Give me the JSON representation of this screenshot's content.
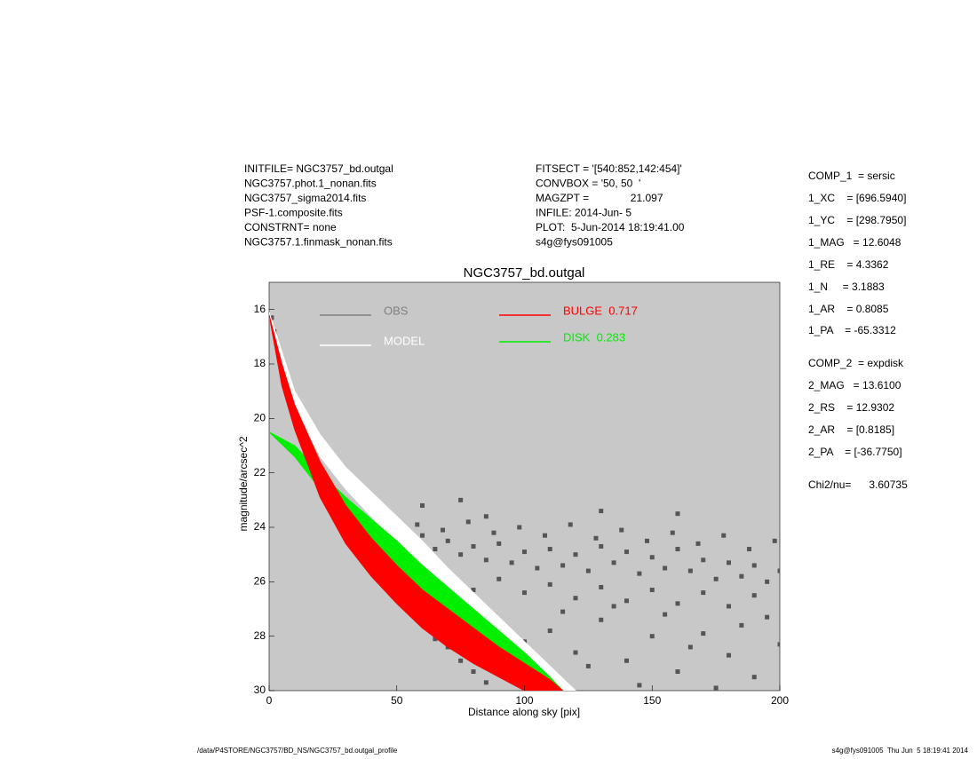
{
  "header": {
    "left": [
      "INITFILE= NGC3757_bd.outgal",
      "NGC3757.phot.1_nonan.fits",
      "NGC3757_sigma2014.fits",
      "PSF-1.composite.fits",
      "CONSTRNT= none",
      "NGC3757.1.finmask_nonan.fits"
    ],
    "middle": [
      "FITSECT = '[540:852,142:454]'",
      "CONVBOX = '50, 50  '",
      "MAGZPT =              21.097",
      "INFILE: 2014-Jun- 5",
      "PLOT:  5-Jun-2014 18:19:41.00",
      "s4g@fys091005"
    ]
  },
  "params": [
    "COMP_1  = sersic",
    "1_XC    = [696.5940]",
    "1_YC    = [298.7950]",
    "1_MAG   = 12.6048",
    "1_RE    = 4.3362",
    "1_N     = 3.1883",
    "1_AR    = 0.8085",
    "1_PA    = -65.3312",
    "COMP_2  = expdisk",
    "2_MAG   = 13.6100",
    "2_RS    = 12.9302",
    "2_AR    = [0.8185]",
    "2_PA    = [-36.7750]",
    "Chi2/nu=      3.60735"
  ],
  "footer": {
    "left": "/data/P4STORE/NGC3757/BD_NS/NGC3757_bd.outgal_profile",
    "right": "s4g@fys091005  Thu Jun  5 18:19:41 2014"
  },
  "chart_data": {
    "type": "scatter",
    "title": "NGC3757_bd.outgal",
    "xlabel": "Distance along sky [pix]",
    "ylabel": "magnitude/arcsec^2",
    "xlim": [
      0,
      200
    ],
    "ylim": [
      30,
      15
    ],
    "xticks": [
      0,
      50,
      100,
      150,
      200
    ],
    "yticks": [
      16,
      18,
      20,
      22,
      24,
      26,
      28,
      30
    ],
    "background": "#c8c8c8",
    "series": [
      {
        "name": "OBS",
        "color": "#808080",
        "point_color": "#555555",
        "style": "scatter",
        "x": [
          1,
          2,
          3,
          4,
          6,
          8,
          10,
          12,
          14,
          16,
          18,
          20,
          22,
          24,
          26,
          28,
          30,
          32,
          34,
          36,
          38,
          40,
          20,
          25,
          30,
          35,
          40,
          45,
          50,
          55,
          60,
          65,
          70,
          75,
          80,
          85,
          18,
          28,
          38,
          45,
          50,
          55,
          60,
          65,
          70,
          75,
          80,
          85,
          90,
          95,
          100,
          105,
          110,
          115,
          120,
          125,
          130,
          135,
          140,
          145,
          150,
          155,
          160,
          165,
          170,
          175,
          180,
          185,
          190,
          195,
          200,
          60,
          70,
          80,
          90,
          100,
          110,
          120,
          130,
          140,
          150,
          160,
          170,
          180,
          190,
          48,
          58,
          68,
          78,
          88,
          98,
          108,
          118,
          128,
          138,
          148,
          158,
          168,
          178,
          188,
          198,
          90,
          100,
          110,
          120,
          130,
          140,
          150,
          160,
          170,
          180,
          190,
          200,
          105,
          125,
          145,
          165,
          185,
          155,
          115,
          135,
          195,
          175,
          60,
          85,
          130,
          160,
          75
        ],
        "values": [
          16.3,
          16.8,
          17.3,
          17.8,
          18.4,
          18.9,
          19.4,
          19.8,
          20.1,
          20.5,
          20.8,
          21.1,
          21.4,
          21.6,
          21.9,
          22.1,
          22.4,
          22.6,
          22.8,
          23.0,
          23.2,
          23.4,
          22.4,
          23.3,
          24.0,
          24.6,
          25.1,
          25.6,
          26.4,
          27.0,
          27.5,
          28.1,
          28.4,
          28.9,
          29.3,
          29.7,
          21.9,
          23.5,
          24.2,
          24.2,
          24.0,
          24.6,
          24.3,
          24.8,
          24.5,
          25.0,
          24.7,
          25.2,
          24.6,
          25.3,
          24.9,
          25.5,
          24.8,
          25.4,
          25.0,
          25.6,
          24.7,
          25.3,
          24.9,
          25.7,
          25.1,
          25.5,
          24.8,
          25.6,
          25.2,
          25.9,
          25.3,
          25.8,
          25.4,
          26.0,
          25.6,
          25.8,
          26.0,
          26.3,
          25.9,
          26.4,
          26.1,
          26.6,
          26.2,
          26.7,
          26.3,
          26.8,
          26.4,
          26.9,
          26.5,
          23.6,
          23.9,
          24.1,
          23.8,
          24.2,
          24.0,
          24.3,
          23.9,
          24.4,
          24.1,
          24.5,
          24.2,
          24.6,
          24.3,
          24.8,
          24.5,
          27.5,
          28.2,
          27.8,
          28.6,
          27.4,
          28.9,
          28.0,
          29.3,
          27.9,
          28.7,
          29.5,
          28.3,
          29.6,
          29.1,
          29.8,
          28.4,
          27.6,
          27.2,
          27.1,
          26.9,
          27.3,
          29.9,
          23.2,
          23.6,
          23.4,
          23.5,
          23.0
        ]
      },
      {
        "name": "MODEL",
        "color": "#ffffff",
        "style": "band",
        "x": [
          0,
          10,
          20,
          30,
          40,
          50,
          60,
          70,
          80,
          90,
          100,
          110,
          120
        ],
        "values": [
          16.1,
          19.0,
          20.6,
          21.8,
          22.7,
          23.6,
          24.5,
          25.5,
          26.4,
          27.3,
          28.2,
          29.1,
          30.0
        ],
        "values_faint": [
          16.3,
          19.6,
          21.4,
          22.6,
          23.6,
          24.6,
          25.5,
          26.5,
          27.4,
          28.3,
          29.1,
          30.0,
          30.6
        ]
      },
      {
        "name": "BULGE  0.717",
        "color": "#ff0000",
        "style": "band",
        "x": [
          0,
          5,
          10,
          20,
          30,
          40,
          50,
          60,
          70,
          80,
          90,
          100,
          110,
          115
        ],
        "values": [
          16.2,
          18.0,
          19.5,
          21.6,
          23.2,
          24.4,
          25.4,
          26.3,
          27.0,
          27.7,
          28.4,
          29.0,
          29.6,
          30.0
        ],
        "values_faint": [
          16.2,
          18.8,
          20.4,
          22.9,
          24.6,
          25.8,
          26.8,
          27.7,
          28.4,
          29.0,
          29.5,
          30.0,
          30.6,
          30.9
        ]
      },
      {
        "name": "DISK  0.283",
        "color": "#00ee00",
        "style": "band",
        "x": [
          0,
          10,
          20,
          30,
          40,
          50,
          60,
          70,
          80,
          90,
          100,
          110,
          115
        ],
        "values": [
          20.5,
          21.0,
          22.0,
          22.9,
          23.7,
          24.5,
          25.4,
          26.2,
          27.0,
          27.8,
          28.6,
          29.5,
          30.0
        ],
        "values_faint": [
          20.5,
          21.4,
          22.6,
          23.6,
          24.6,
          25.5,
          26.5,
          27.3,
          28.1,
          28.9,
          29.6,
          30.3,
          30.5
        ]
      }
    ]
  }
}
